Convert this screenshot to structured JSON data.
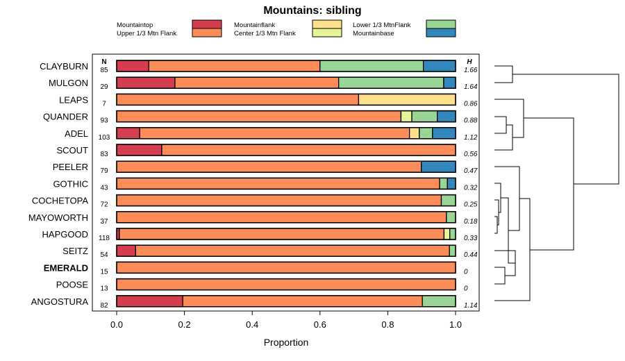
{
  "chart_data": {
    "type": "bar",
    "title": "Mountains: sibling",
    "xlabel": "Proportion",
    "xlim": [
      0,
      1
    ],
    "xticks": [
      "0.0",
      "0.2",
      "0.4",
      "0.6",
      "0.8",
      "1.0"
    ],
    "n_header": "N",
    "h_header": "H",
    "legend": [
      {
        "label": "Mountaintop",
        "color": "#d53e4f"
      },
      {
        "label": "Upper 1/3 Mtn Flank",
        "color": "#fc8d59"
      },
      {
        "label": "Mountainflank",
        "color": "#fee08b"
      },
      {
        "label": "Center 1/3 Mtn Flank",
        "color": "#ffffbf"
      },
      {
        "label": "Lower 1/3 MtnFlank",
        "color": "#99d594"
      },
      {
        "label": "Mountainbase",
        "color": "#3288bd"
      }
    ],
    "segment_colors": [
      "#d53e4f",
      "#fc8d59",
      "#fee08b",
      "#e6f598",
      "#99d594",
      "#3288bd"
    ],
    "rows": [
      {
        "site": "CLAYBURN",
        "n": "85",
        "h": "1.66",
        "bold": false,
        "values": [
          0.095,
          0.505,
          0,
          0,
          0.305,
          0.095
        ]
      },
      {
        "site": "MULGON",
        "n": "29",
        "h": "1.64",
        "bold": false,
        "values": [
          0.172,
          0.483,
          0,
          0,
          0.31,
          0.035
        ]
      },
      {
        "site": "LEAPS",
        "n": "7",
        "h": "0.86",
        "bold": false,
        "values": [
          0,
          0.714,
          0.286,
          0,
          0,
          0
        ]
      },
      {
        "site": "QUANDER",
        "n": "93",
        "h": "0.88",
        "bold": false,
        "values": [
          0,
          0.839,
          0,
          0.032,
          0.075,
          0.054
        ]
      },
      {
        "site": "ADEL",
        "n": "103",
        "h": "1.12",
        "bold": false,
        "values": [
          0.068,
          0.796,
          0.029,
          0,
          0.039,
          0.068
        ]
      },
      {
        "site": "SCOUT",
        "n": "83",
        "h": "0.56",
        "bold": false,
        "values": [
          0.133,
          0.867,
          0,
          0,
          0,
          0
        ]
      },
      {
        "site": "PEELER",
        "n": "79",
        "h": "0.47",
        "bold": false,
        "values": [
          0,
          0.899,
          0,
          0,
          0,
          0.101
        ]
      },
      {
        "site": "GOTHIC",
        "n": "43",
        "h": "0.32",
        "bold": false,
        "values": [
          0,
          0.953,
          0,
          0,
          0.023,
          0.024
        ]
      },
      {
        "site": "COCHETOPA",
        "n": "72",
        "h": "0.25",
        "bold": false,
        "values": [
          0,
          0.958,
          0,
          0,
          0.042,
          0
        ]
      },
      {
        "site": "MAYOWORTH",
        "n": "37",
        "h": "0.18",
        "bold": false,
        "values": [
          0,
          0.973,
          0,
          0,
          0.027,
          0
        ]
      },
      {
        "site": "HAPGOOD",
        "n": "118",
        "h": "0.33",
        "bold": false,
        "values": [
          0.008,
          0.958,
          0,
          0.017,
          0.017,
          0
        ]
      },
      {
        "site": "SEITZ",
        "n": "54",
        "h": "0.44",
        "bold": false,
        "values": [
          0.056,
          0.926,
          0,
          0,
          0.018,
          0
        ]
      },
      {
        "site": "EMERALD",
        "n": "15",
        "h": "0",
        "bold": true,
        "values": [
          0,
          1,
          0,
          0,
          0,
          0
        ]
      },
      {
        "site": "POOSE",
        "n": "13",
        "h": "0",
        "bold": false,
        "values": [
          0,
          1,
          0,
          0,
          0,
          0
        ]
      },
      {
        "site": "ANGOSTURA",
        "n": "82",
        "h": "1.14",
        "bold": false,
        "values": [
          0.195,
          0.707,
          0,
          0,
          0.098,
          0
        ]
      }
    ]
  }
}
